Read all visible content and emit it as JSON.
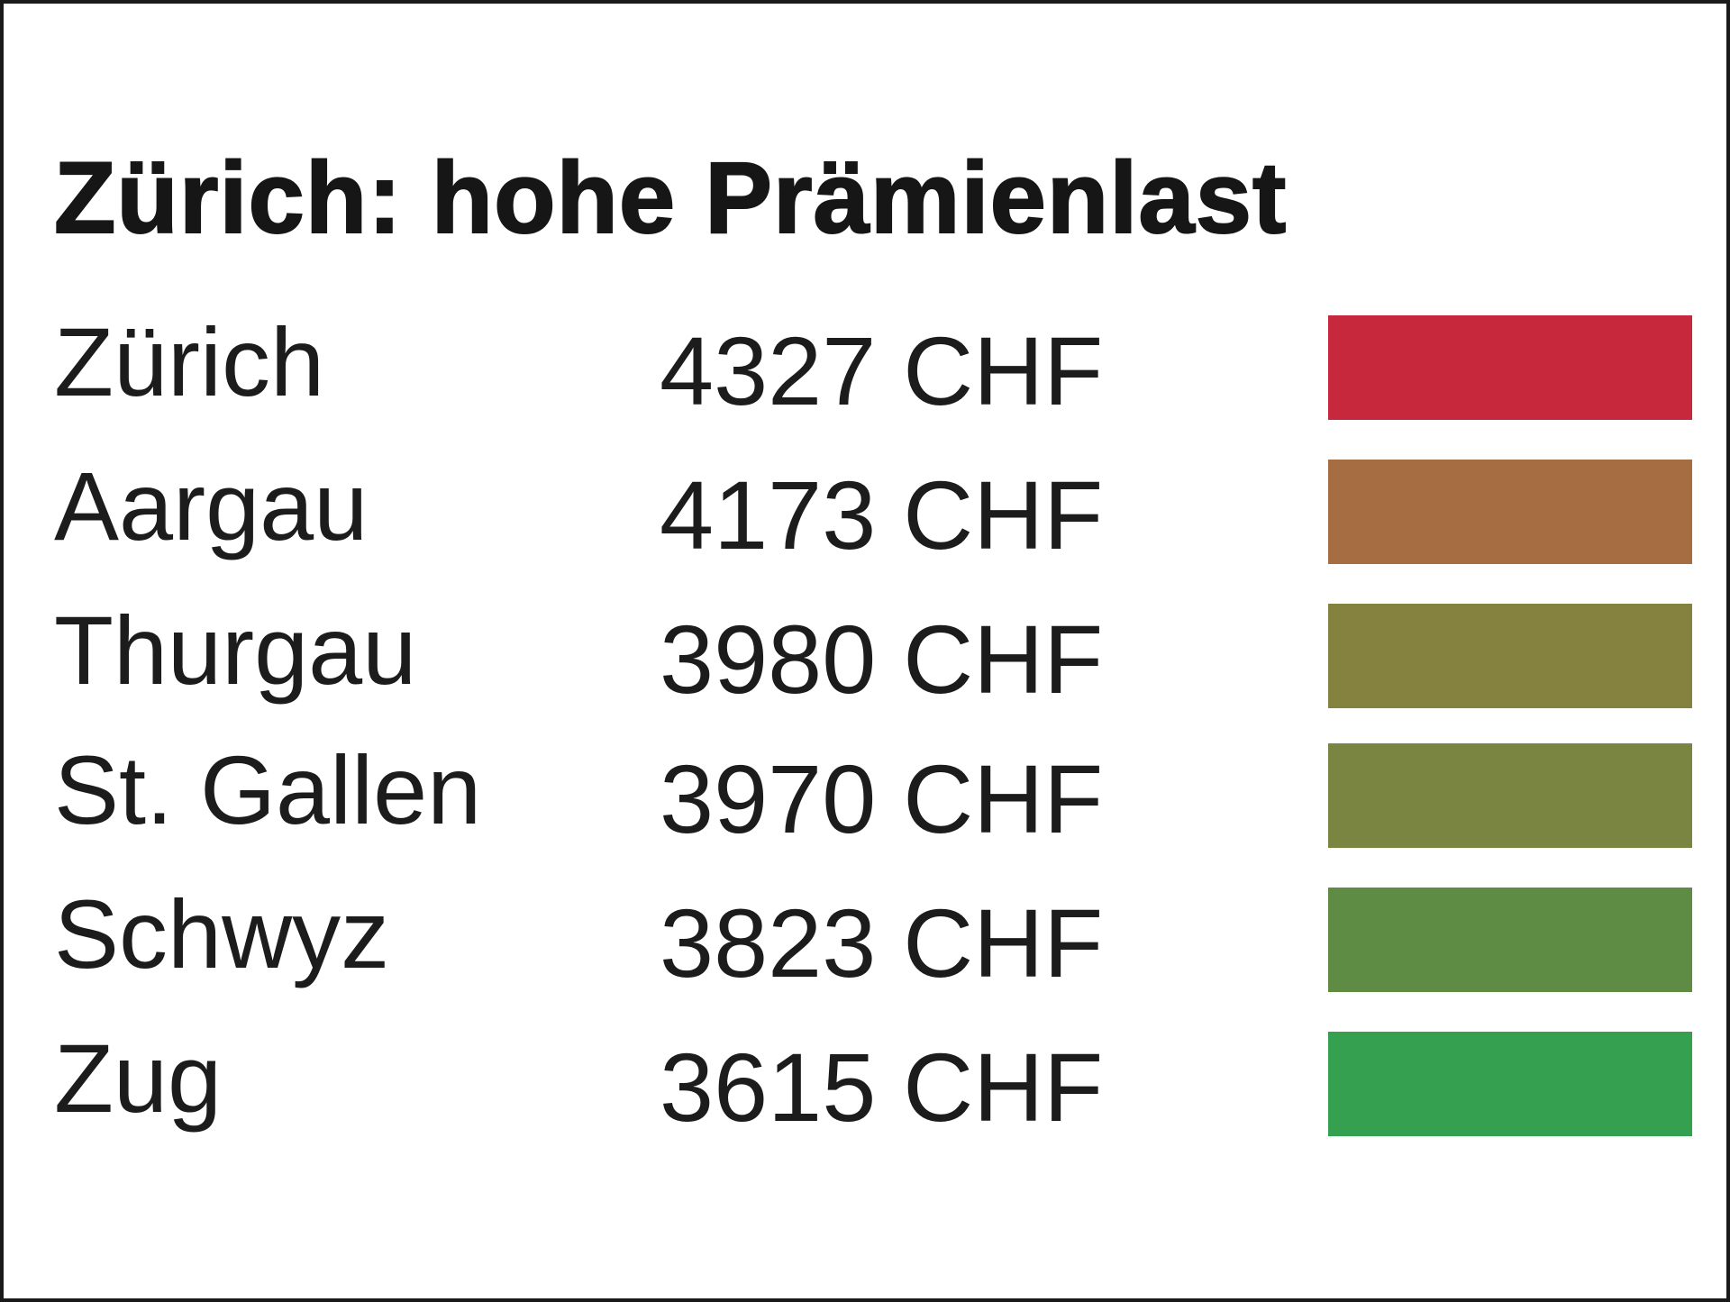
{
  "chart_data": {
    "type": "table",
    "title": "Zürich: hohe Prämienlast",
    "unit": "CHF",
    "rows": [
      {
        "canton": "Zürich",
        "value": 4327,
        "value_label": "4327 CHF",
        "color": "#c8283b"
      },
      {
        "canton": "Aargau",
        "value": 4173,
        "value_label": "4173 CHF",
        "color": "#a66c42"
      },
      {
        "canton": "Thurgau",
        "value": 3980,
        "value_label": "3980 CHF",
        "color": "#858240"
      },
      {
        "canton": "St. Gallen",
        "value": 3970,
        "value_label": "3970 CHF",
        "color": "#7a8542"
      },
      {
        "canton": "Schwyz",
        "value": 3823,
        "value_label": "3823 CHF",
        "color": "#5e8c44"
      },
      {
        "canton": "Zug",
        "value": 3615,
        "value_label": "3615 CHF",
        "color": "#35a04f"
      }
    ]
  }
}
